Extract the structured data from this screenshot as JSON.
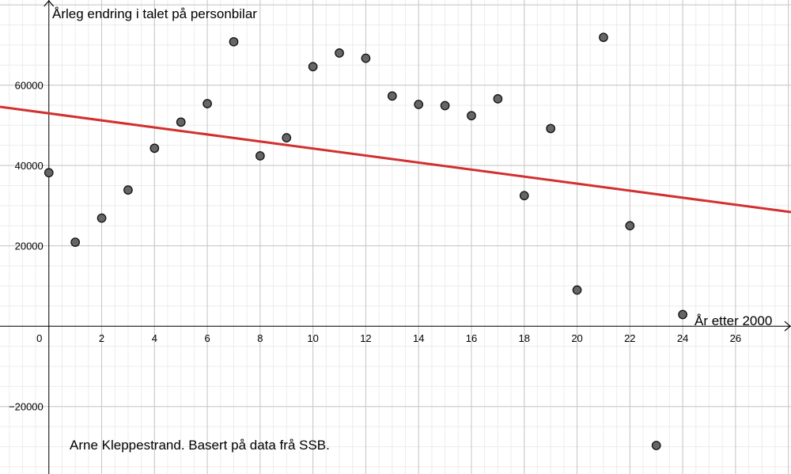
{
  "chart_data": {
    "type": "scatter",
    "title": "",
    "xlabel": "År etter 2000",
    "ylabel": "Årleg endring i talet på personbilar",
    "xlim": [
      -1.85,
      28.1
    ],
    "ylim": [
      -36800,
      81200
    ],
    "x_ticks": [
      0,
      2,
      4,
      6,
      8,
      10,
      12,
      14,
      16,
      18,
      20,
      22,
      24,
      26
    ],
    "y_ticks": [
      -20000,
      20000,
      40000,
      60000
    ],
    "x_tick_labels": [
      "0",
      "2",
      "4",
      "6",
      "8",
      "10",
      "12",
      "14",
      "16",
      "18",
      "20",
      "22",
      "24",
      "26"
    ],
    "y_tick_labels": [
      "−20000",
      "20000",
      "40000",
      "60000"
    ],
    "grid": true,
    "series": [
      {
        "x": [
          0,
          1,
          2,
          3,
          4,
          5,
          6,
          7,
          8,
          9,
          10,
          11,
          12,
          13,
          14,
          15,
          16,
          17,
          18,
          19,
          20,
          21,
          22,
          23,
          24
        ],
        "y": [
          38200,
          20900,
          26900,
          33900,
          44300,
          50800,
          55400,
          70800,
          42400,
          46900,
          64600,
          68000,
          66700,
          57300,
          55200,
          54900,
          52400,
          56600,
          32500,
          49200,
          9000,
          71900,
          25000,
          -29700,
          2900
        ],
        "color": "#666666"
      }
    ],
    "trendline": {
      "intercept": 52980,
      "slope": -875,
      "color": "#d32f2f"
    },
    "annotation": "Arne Kleppestrand. Basert på data frå SSB."
  }
}
